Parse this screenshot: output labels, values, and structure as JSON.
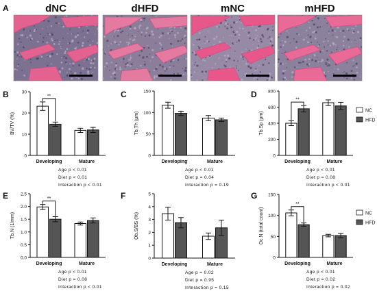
{
  "panel_a": {
    "letter": "A",
    "images": [
      {
        "label": "dNC",
        "tissue_color": "#e3628f",
        "marrow_color": "#7d7191"
      },
      {
        "label": "dHFD",
        "tissue_color": "#e57aa1",
        "marrow_color": "#8a7e9b"
      },
      {
        "label": "mNC",
        "tissue_color": "#e8578a",
        "marrow_color": "#968aa6"
      },
      {
        "label": "mHFD",
        "tissue_color": "#ea6a97",
        "marrow_color": "#8c819c"
      }
    ]
  },
  "legend": {
    "entries": [
      {
        "label": "NC",
        "color": "#ffffff"
      },
      {
        "label": "HFD",
        "color": "#555555"
      }
    ]
  },
  "chart_data": [
    {
      "panel": "B",
      "type": "bar",
      "ylabel": "BV/TV (%)",
      "ylim": [
        0,
        30
      ],
      "yticks": [
        0,
        10,
        20,
        30
      ],
      "categories": [
        "Developing",
        "Mature"
      ],
      "series": [
        {
          "name": "NC",
          "values": [
            23.2,
            11.8
          ],
          "errors": [
            2.0,
            1.0
          ]
        },
        {
          "name": "HFD",
          "values": [
            14.7,
            12.0
          ],
          "errors": [
            1.0,
            1.2
          ]
        }
      ],
      "significance": {
        "group": "Developing",
        "label": "**"
      },
      "stats": [
        "Age p < 0.01",
        "Diet p < 0.01",
        "Interaction p < 0.01"
      ]
    },
    {
      "panel": "C",
      "type": "bar",
      "ylabel": "Tb.Th (μm)",
      "ylim": [
        0,
        150
      ],
      "yticks": [
        0,
        50,
        100,
        150
      ],
      "categories": [
        "Developing",
        "Mature"
      ],
      "series": [
        {
          "name": "NC",
          "values": [
            117,
            87
          ],
          "errors": [
            7,
            6
          ]
        },
        {
          "name": "HFD",
          "values": [
            98,
            83
          ],
          "errors": [
            5,
            4
          ]
        }
      ],
      "stats": [
        "Age p < 0.01",
        "Diet p = 0.04",
        "Interaction p = 0.19"
      ]
    },
    {
      "panel": "D",
      "type": "bar",
      "ylabel": "Tb.Sp (μm)",
      "ylim": [
        0,
        800
      ],
      "yticks": [
        0,
        200,
        400,
        600,
        800
      ],
      "categories": [
        "Developing",
        "Mature"
      ],
      "series": [
        {
          "name": "NC",
          "values": [
            400,
            655
          ],
          "errors": [
            30,
            35
          ]
        },
        {
          "name": "HFD",
          "values": [
            580,
            615
          ],
          "errors": [
            40,
            45
          ]
        }
      ],
      "significance": {
        "group": "Developing",
        "label": "**"
      },
      "stats": [
        "Age p < 0.01",
        "Diet p = 0.08",
        "Interaction p < 0.01"
      ]
    },
    {
      "panel": "E",
      "type": "bar",
      "ylabel": "Tb.N (1/mm)",
      "ylim": [
        0,
        2.5
      ],
      "yticks": [
        0.0,
        0.5,
        1.0,
        1.5,
        2.0,
        2.5
      ],
      "categories": [
        "Developing",
        "Mature"
      ],
      "series": [
        {
          "name": "NC",
          "values": [
            1.98,
            1.33
          ],
          "errors": [
            0.1,
            0.06
          ]
        },
        {
          "name": "HFD",
          "values": [
            1.5,
            1.45
          ],
          "errors": [
            0.1,
            0.1
          ]
        }
      ],
      "significance": {
        "group": "Developing",
        "label": "**"
      },
      "stats": [
        "Age p < 0.01",
        "Diet p = 0.08",
        "Interaction p < 0.01"
      ]
    },
    {
      "panel": "F",
      "type": "bar",
      "ylabel": "Ob.S/BS (%)",
      "ylim": [
        0,
        5
      ],
      "yticks": [
        0,
        1,
        2,
        3,
        4,
        5
      ],
      "categories": [
        "Developing",
        "Mature"
      ],
      "series": [
        {
          "name": "NC",
          "values": [
            3.45,
            1.7
          ],
          "errors": [
            0.5,
            0.25
          ]
        },
        {
          "name": "HFD",
          "values": [
            2.75,
            2.35
          ],
          "errors": [
            0.4,
            0.6
          ]
        }
      ],
      "stats": [
        "Age p = 0.02",
        "Diet p = 0.95",
        "Interaction p = 0.15"
      ]
    },
    {
      "panel": "G",
      "type": "bar",
      "ylabel": "Oc.N (total count)",
      "ylim": [
        0,
        150
      ],
      "yticks": [
        0,
        50,
        100,
        150
      ],
      "categories": [
        "Developing",
        "Mature"
      ],
      "series": [
        {
          "name": "NC",
          "values": [
            106,
            52
          ],
          "errors": [
            7,
            3
          ]
        },
        {
          "name": "HFD",
          "values": [
            78,
            52
          ],
          "errors": [
            4,
            5
          ]
        }
      ],
      "significance": {
        "group": "Developing",
        "label": "**"
      },
      "stats": [
        "Age p < 0.01",
        "Diet p = 0.02",
        "Interaction p = 0.02"
      ]
    }
  ]
}
